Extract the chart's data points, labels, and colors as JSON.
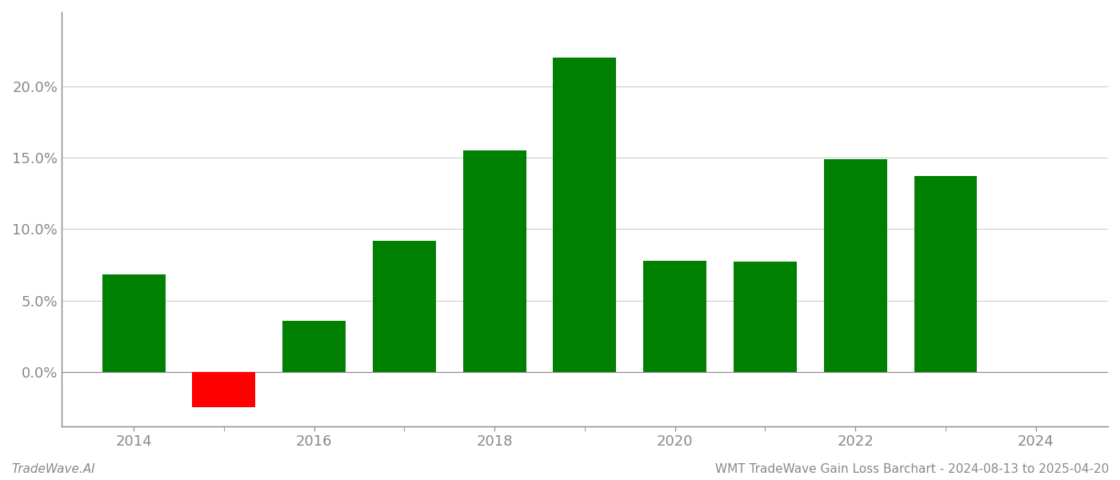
{
  "years": [
    2014,
    2015,
    2016,
    2017,
    2018,
    2019,
    2020,
    2021,
    2022,
    2023
  ],
  "values": [
    0.068,
    -0.025,
    0.036,
    0.092,
    0.155,
    0.22,
    0.078,
    0.077,
    0.149,
    0.137
  ],
  "colors": [
    "#008000",
    "#ff0000",
    "#008000",
    "#008000",
    "#008000",
    "#008000",
    "#008000",
    "#008000",
    "#008000",
    "#008000"
  ],
  "title": "WMT TradeWave Gain Loss Barchart - 2024-08-13 to 2025-04-20",
  "watermark": "TradeWave.AI",
  "ylim_min": -0.038,
  "ylim_max": 0.252,
  "background_color": "#ffffff",
  "grid_color": "#cccccc",
  "bar_width": 0.7,
  "ytick_values": [
    0.0,
    0.05,
    0.1,
    0.15,
    0.2
  ],
  "xtick_major_labels": [
    "2014",
    "2016",
    "2018",
    "2020",
    "2022",
    "2024"
  ],
  "xtick_major_values": [
    2014,
    2016,
    2018,
    2020,
    2022,
    2024
  ],
  "xtick_minor_values": [
    2015,
    2017,
    2019,
    2021,
    2023
  ],
  "label_color": "#888888",
  "title_fontsize": 11,
  "watermark_fontsize": 11,
  "tick_fontsize": 13
}
